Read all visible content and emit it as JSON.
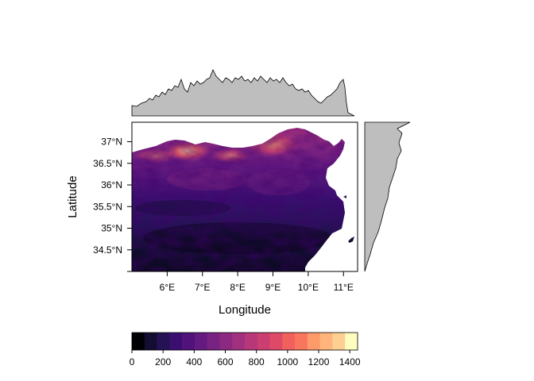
{
  "map": {
    "xlabel": "Longitude",
    "ylabel": "Latitude",
    "x_ticks": [
      "6°E",
      "7°E",
      "8°E",
      "9°E",
      "10°E",
      "11°E"
    ],
    "y_ticks": [
      "34.5°N",
      "35°N",
      "35.5°N",
      "36°N",
      "36.5°N",
      "37°N"
    ],
    "xlim": [
      5.0,
      11.4
    ],
    "ylim": [
      34.0,
      37.45
    ]
  },
  "legend": {
    "tick_labels": [
      "0",
      "200",
      "400",
      "600",
      "800",
      "1000",
      "1200",
      "1400"
    ],
    "range": [
      0,
      1450
    ],
    "colors": [
      "#000004",
      "#120d31",
      "#251255",
      "#3b0f70",
      "#51127c",
      "#641a80",
      "#782281",
      "#8c2981",
      "#a1307e",
      "#b73779",
      "#ca3e72",
      "#de4968",
      "#f1605d",
      "#f8765c",
      "#fd9a6a",
      "#feb47b",
      "#fecf92",
      "#fcfdbf"
    ]
  },
  "colors": {
    "profile_fill": "#bebebe",
    "profile_stroke": "#000000",
    "sea_background": "#ffffff"
  }
}
